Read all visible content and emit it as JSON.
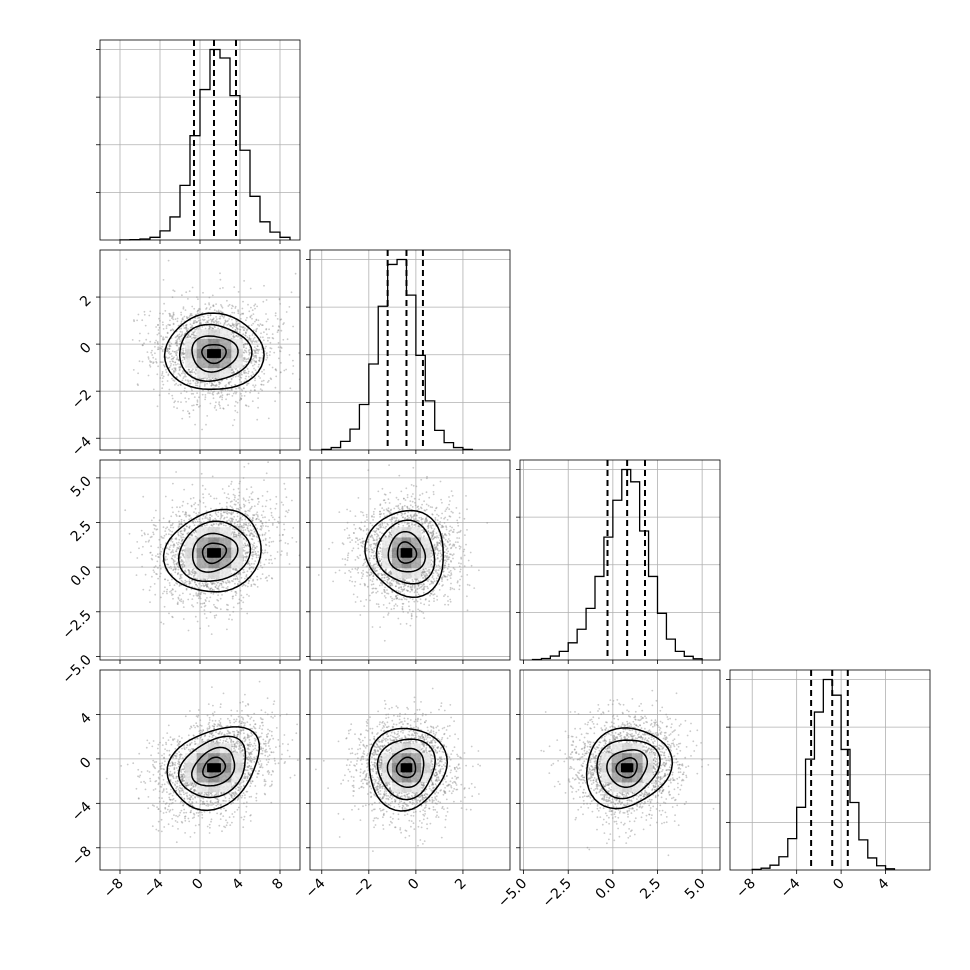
{
  "chart_data": {
    "type": "corner",
    "ndim": 4,
    "grid": true,
    "quantile_lines": "dashed",
    "parameters": [
      {
        "range": [
          -10,
          10
        ],
        "ticks": [
          -8,
          -4,
          0,
          4,
          8
        ],
        "tick_labels": [
          "−8",
          "−4",
          "0",
          "4",
          "8"
        ],
        "quantiles": [
          -0.6,
          1.4,
          3.6
        ],
        "hist_edges": [
          -8,
          -7,
          -6,
          -5,
          -4,
          -3,
          -2,
          -1,
          0,
          1,
          2,
          3,
          4,
          5,
          6,
          7,
          8,
          9
        ],
        "hist_counts": [
          1,
          3,
          8,
          22,
          75,
          190,
          450,
          860,
          1240,
          1570,
          1500,
          1190,
          740,
          360,
          150,
          65,
          22
        ]
      },
      {
        "range": [
          -4.5,
          4.0
        ],
        "ticks": [
          -4,
          -2,
          0,
          2
        ],
        "tick_labels": [
          "−4",
          "−2",
          "0",
          "2"
        ],
        "quantiles": [
          -1.2,
          -0.4,
          0.3
        ],
        "hist_edges": [
          -4,
          -3.6,
          -3.2,
          -2.8,
          -2.4,
          -2.0,
          -1.6,
          -1.2,
          -0.8,
          -0.4,
          0.0,
          0.4,
          0.8,
          1.2,
          1.6,
          2.0,
          2.4
        ],
        "hist_counts": [
          5,
          20,
          70,
          170,
          370,
          700,
          1170,
          1510,
          1550,
          1260,
          770,
          400,
          160,
          60,
          20,
          5
        ]
      },
      {
        "range": [
          -5.2,
          6.0
        ],
        "ticks": [
          -5.0,
          -2.5,
          0.0,
          2.5,
          5.0
        ],
        "tick_labels": [
          "−5.0",
          "−2.5",
          "0.0",
          "2.5",
          "5.0"
        ],
        "quantiles": [
          -0.3,
          0.8,
          1.8
        ],
        "hist_edges": [
          -4.5,
          -4.0,
          -3.5,
          -3.0,
          -2.5,
          -2.0,
          -1.5,
          -1.0,
          -0.5,
          0.0,
          0.5,
          1.0,
          1.5,
          2.0,
          2.5,
          3.0,
          3.5,
          4.0,
          4.5,
          5.0
        ],
        "hist_counts": [
          4,
          12,
          32,
          70,
          140,
          250,
          420,
          680,
          1000,
          1300,
          1550,
          1450,
          1050,
          680,
          380,
          170,
          70,
          30,
          10
        ]
      },
      {
        "range": [
          -10,
          8
        ],
        "ticks": [
          -8,
          -4,
          0,
          4
        ],
        "tick_labels": [
          "−8",
          "−4",
          "0",
          "4"
        ],
        "quantiles": [
          -2.7,
          -0.8,
          0.6
        ],
        "hist_edges": [
          -8,
          -7.2,
          -6.4,
          -5.6,
          -4.8,
          -4.0,
          -3.2,
          -2.4,
          -1.6,
          -0.8,
          0.0,
          0.8,
          1.6,
          2.4,
          3.2,
          4.0,
          4.8
        ],
        "hist_counts": [
          5,
          15,
          40,
          110,
          260,
          520,
          920,
          1310,
          1580,
          1450,
          1000,
          560,
          250,
          100,
          35,
          10
        ]
      }
    ],
    "pairs": [
      {
        "x": 0,
        "y": 1,
        "center": [
          1.4,
          -0.4
        ],
        "sigma": [
          2.1,
          0.75
        ],
        "rho": 0.0,
        "skew": 0.08,
        "seed": 11
      },
      {
        "x": 0,
        "y": 2,
        "center": [
          1.4,
          0.8
        ],
        "sigma": [
          2.1,
          1.05
        ],
        "rho": 0.18,
        "skew": 0.1,
        "seed": 23
      },
      {
        "x": 1,
        "y": 2,
        "center": [
          -0.4,
          0.8
        ],
        "sigma": [
          0.75,
          1.05
        ],
        "rho": 0.0,
        "skew": 0.0,
        "seed": 37
      },
      {
        "x": 0,
        "y": 3,
        "center": [
          1.4,
          -0.8
        ],
        "sigma": [
          2.1,
          1.6
        ],
        "rho": 0.3,
        "skew": 0.05,
        "seed": 41
      },
      {
        "x": 1,
        "y": 3,
        "center": [
          -0.4,
          -0.8
        ],
        "sigma": [
          0.75,
          1.6
        ],
        "rho": 0.0,
        "skew": 0.0,
        "seed": 53
      },
      {
        "x": 2,
        "y": 3,
        "center": [
          0.8,
          -0.8
        ],
        "sigma": [
          1.05,
          1.6
        ],
        "rho": 0.05,
        "skew": 0.03,
        "seed": 67
      }
    ]
  }
}
